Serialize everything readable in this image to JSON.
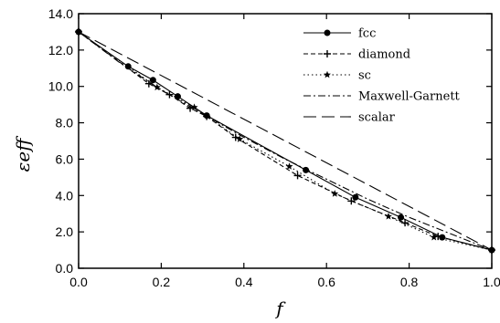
{
  "chart_data": {
    "type": "line",
    "xlabel": "f",
    "ylabel": "εeff",
    "xlim": [
      0.0,
      1.0
    ],
    "ylim": [
      0.0,
      14.0
    ],
    "xticks": [
      "0.0",
      "0.2",
      "0.4",
      "0.6",
      "0.8",
      "1.0"
    ],
    "yticks": [
      "0.0",
      "2.0",
      "4.0",
      "6.0",
      "8.0",
      "10.0",
      "12.0",
      "14.0"
    ],
    "grid": false,
    "legend_position": "top-right",
    "series": [
      {
        "name": "fcc",
        "style": "solid",
        "marker": "circle",
        "x": [
          0.0,
          0.12,
          0.18,
          0.24,
          0.31,
          0.55,
          0.67,
          0.78,
          0.88,
          1.0
        ],
        "y": [
          13.0,
          11.1,
          10.35,
          9.45,
          8.4,
          5.4,
          3.9,
          2.8,
          1.7,
          1.0
        ]
      },
      {
        "name": "diamond",
        "style": "dashed",
        "marker": "plus",
        "x": [
          0.0,
          0.17,
          0.22,
          0.27,
          0.31,
          0.38,
          0.53,
          0.66,
          0.79,
          0.87,
          1.0
        ],
        "y": [
          13.0,
          10.15,
          9.55,
          8.8,
          8.35,
          7.2,
          5.1,
          3.7,
          2.5,
          1.75,
          1.0
        ]
      },
      {
        "name": "sc",
        "style": "dotted",
        "marker": "star",
        "x": [
          0.0,
          0.19,
          0.28,
          0.39,
          0.51,
          0.62,
          0.75,
          0.86,
          1.0
        ],
        "y": [
          13.0,
          9.95,
          8.85,
          7.1,
          5.6,
          4.1,
          2.85,
          1.7,
          1.0
        ]
      },
      {
        "name": "Maxwell-Garnett",
        "style": "dashdot",
        "marker": "none",
        "x": [
          0.0,
          0.1,
          0.2,
          0.3,
          0.4,
          0.5,
          0.6,
          0.7,
          0.8,
          0.9,
          1.0
        ],
        "y": [
          13.0,
          11.3,
          9.8,
          8.5,
          7.2,
          6.0,
          4.9,
          3.8,
          2.8,
          1.9,
          1.0
        ]
      },
      {
        "name": "scalar",
        "style": "longdash",
        "marker": "none",
        "x": [
          0.0,
          1.0
        ],
        "y": [
          13.0,
          1.0
        ]
      }
    ]
  }
}
